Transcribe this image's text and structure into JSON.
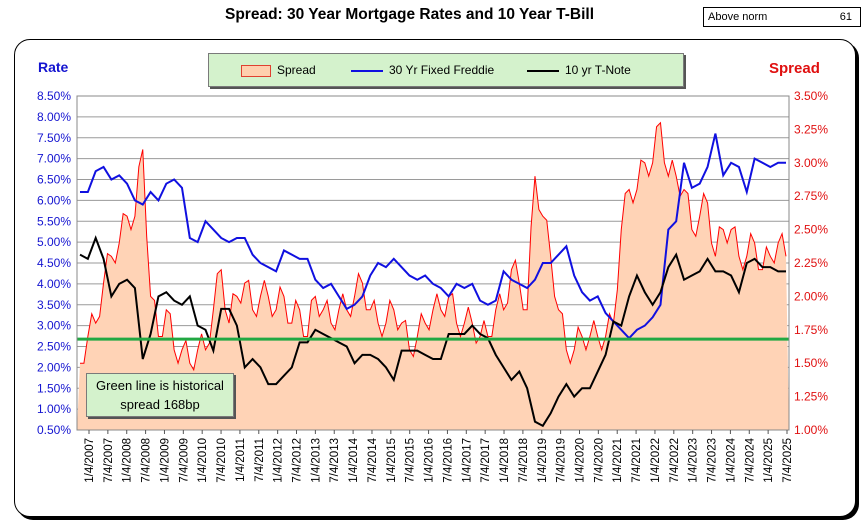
{
  "title": "Spread:  30 Year Mortgage Rates and 10 Year T-Bill",
  "norm_box": {
    "label": "Above norm",
    "value": "61"
  },
  "note": {
    "line1": "Green line is historical",
    "line2": "spread 168bp"
  },
  "colors": {
    "mortgage": "#1010e0",
    "tnote": "#000000",
    "spread_line": "#ff0000",
    "spread_fill": "#ffd3b6",
    "historical": "#22a843",
    "left_axis": "#1414d0",
    "right_axis": "#e01010"
  },
  "chart_data": {
    "type": "line",
    "left_axis_title": "Rate",
    "right_axis_title": "Spread",
    "ylim_left": [
      0.5,
      8.5
    ],
    "ylim_right": [
      1.0,
      3.5
    ],
    "yticks_left": [
      "8.50%",
      "8.00%",
      "7.50%",
      "7.00%",
      "6.50%",
      "6.00%",
      "5.50%",
      "5.00%",
      "4.50%",
      "4.00%",
      "3.50%",
      "3.00%",
      "2.50%",
      "2.00%",
      "1.50%",
      "1.00%",
      "0.50%"
    ],
    "yticks_right": [
      "3.50%",
      "3.25%",
      "3.00%",
      "2.75%",
      "2.50%",
      "2.25%",
      "2.00%",
      "1.75%",
      "1.50%",
      "1.25%",
      "1.00%"
    ],
    "xticks": [
      "1/4/2007",
      "7/4/2007",
      "1/4/2008",
      "7/4/2008",
      "1/4/2009",
      "7/4/2009",
      "1/4/2010",
      "7/4/2010",
      "1/4/2011",
      "7/4/2011",
      "1/4/2012",
      "7/4/2012",
      "1/4/2013",
      "7/4/2013",
      "1/4/2014",
      "7/4/2014",
      "1/4/2015",
      "7/4/2015",
      "1/4/2016",
      "7/4/2016",
      "1/4/2017",
      "7/4/2017",
      "1/4/2018",
      "7/4/2018",
      "1/4/2019",
      "7/4/2019",
      "1/4/2020",
      "7/4/2020",
      "1/4/2021",
      "7/4/2021",
      "1/4/2022",
      "7/4/2022",
      "1/4/2023",
      "7/4/2023",
      "1/4/2024",
      "7/4/2024",
      "1/4/2025",
      "7/4/2025"
    ],
    "historical_spread": 1.68,
    "legend": [
      "Spread",
      "30 Yr Fixed Freddie",
      "10 yr T-Note"
    ],
    "series": [
      {
        "name": "30 Yr Fixed Freddie",
        "axis": "left",
        "values": [
          6.2,
          6.2,
          6.7,
          6.8,
          6.5,
          6.6,
          6.4,
          6.0,
          5.9,
          6.2,
          6.0,
          6.4,
          6.5,
          6.3,
          5.1,
          5.0,
          5.5,
          5.3,
          5.1,
          5.0,
          5.1,
          5.1,
          4.7,
          4.5,
          4.4,
          4.3,
          4.8,
          4.7,
          4.6,
          4.6,
          4.1,
          3.9,
          4.0,
          3.7,
          3.4,
          3.5,
          3.7,
          4.2,
          4.5,
          4.4,
          4.6,
          4.4,
          4.2,
          4.1,
          4.2,
          4.0,
          3.9,
          3.7,
          4.0,
          3.9,
          4.0,
          3.6,
          3.5,
          3.6,
          4.3,
          4.1,
          4.0,
          3.9,
          4.1,
          4.5,
          4.5,
          4.7,
          4.9,
          4.2,
          3.8,
          3.6,
          3.7,
          3.3,
          3.1,
          2.9,
          2.7,
          2.9,
          3.0,
          3.2,
          3.5,
          5.3,
          5.5,
          6.9,
          6.3,
          6.4,
          6.8,
          7.6,
          6.6,
          6.9,
          6.8,
          6.2,
          7.0,
          6.9,
          6.8,
          6.9,
          6.9
        ]
      },
      {
        "name": "10 yr T-Note",
        "axis": "left",
        "values": [
          4.7,
          4.6,
          5.1,
          4.6,
          3.7,
          4.0,
          4.1,
          3.9,
          2.2,
          2.8,
          3.7,
          3.8,
          3.6,
          3.5,
          3.7,
          3.0,
          2.9,
          2.4,
          3.4,
          3.4,
          3.0,
          2.0,
          2.2,
          2.0,
          1.6,
          1.6,
          1.8,
          2.0,
          2.6,
          2.6,
          2.9,
          2.8,
          2.7,
          2.6,
          2.5,
          2.1,
          2.3,
          2.3,
          2.2,
          2.0,
          1.7,
          2.4,
          2.4,
          2.4,
          2.3,
          2.2,
          2.2,
          2.8,
          2.8,
          2.8,
          3.0,
          2.8,
          2.7,
          2.3,
          2.0,
          1.7,
          1.9,
          1.5,
          0.7,
          0.6,
          0.9,
          1.3,
          1.6,
          1.3,
          1.5,
          1.5,
          1.9,
          2.3,
          3.1,
          3.0,
          3.7,
          4.2,
          3.8,
          3.5,
          3.8,
          4.4,
          4.7,
          4.1,
          4.2,
          4.3,
          4.6,
          4.3,
          4.3,
          4.2,
          3.8,
          4.5,
          4.6,
          4.4,
          4.4,
          4.3,
          4.3
        ]
      },
      {
        "name": "Spread",
        "axis": "right",
        "values": [
          1.5,
          1.7,
          1.8,
          2.1,
          2.3,
          2.4,
          2.6,
          2.6,
          3.1,
          2.0,
          1.7,
          1.9,
          1.6,
          1.6,
          1.5,
          1.6,
          1.6,
          1.9,
          2.2,
          1.8,
          2.0,
          2.1,
          1.9,
          2.0,
          2.0,
          1.9,
          2.0,
          1.8,
          1.9,
          1.7,
          2.0,
          1.9,
          1.8,
          1.9,
          1.9,
          2.0,
          2.1,
          1.9,
          1.8,
          1.8,
          1.9,
          1.8,
          1.6,
          1.7,
          1.8,
          1.9,
          1.9,
          2.0,
          1.8,
          1.8,
          1.8,
          1.7,
          1.7,
          1.9,
          1.9,
          2.2,
          2.1,
          1.9,
          2.9,
          2.6,
          2.3,
          1.9,
          1.6,
          1.6,
          1.7,
          1.7,
          1.7,
          1.7,
          1.8,
          2.5,
          2.8,
          2.8,
          3.0,
          3.0,
          3.3,
          2.9,
          2.9,
          2.8,
          2.5,
          2.6,
          2.7,
          2.3,
          2.5,
          2.5,
          2.3,
          2.3,
          2.4,
          2.2,
          2.3,
          2.4,
          2.3
        ]
      }
    ]
  }
}
